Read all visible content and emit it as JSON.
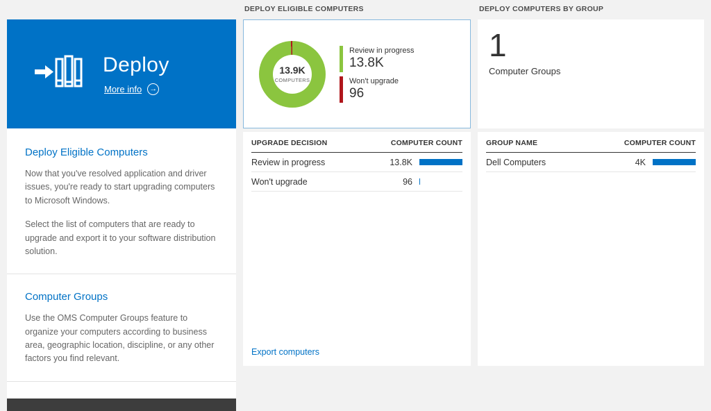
{
  "colors": {
    "accent_blue": "#0072c6",
    "tile_blue": "#0072c6",
    "donut_green": "#8bc53f",
    "donut_red": "#b0161c",
    "footer_bar": "#3d3d3d"
  },
  "left_panel": {
    "tile": {
      "title": "Deploy",
      "more_info_label": "More info"
    },
    "sections": [
      {
        "heading": "Deploy Eligible Computers",
        "paragraphs": [
          "Now that you've resolved application and driver issues, you're ready to start upgrading computers to Microsoft Windows.",
          "Select the list of computers that are ready to upgrade and export it to your software distribution solution."
        ]
      },
      {
        "heading": "Computer Groups",
        "paragraphs": [
          "Use the OMS Computer Groups feature to organize your computers according to business area, geographic location, discipline, or any other factors you find relevant."
        ]
      }
    ]
  },
  "middle_panel": {
    "header": "DEPLOY ELIGIBLE COMPUTERS",
    "table_columns": [
      "UPGRADE DECISION",
      "COMPUTER COUNT"
    ],
    "export_link": "Export computers"
  },
  "right_panel": {
    "header": "DEPLOY COMPUTERS BY GROUP",
    "summary_value": "1",
    "summary_label": "Computer Groups",
    "table_columns": [
      "GROUP NAME",
      "COMPUTER COUNT"
    ]
  },
  "chart_data": [
    {
      "type": "pie",
      "subtype": "donut",
      "title": "DEPLOY ELIGIBLE COMPUTERS",
      "center_value": "13.9K",
      "center_label": "COMPUTERS",
      "slices": [
        {
          "label": "Review in progress",
          "value": 13800,
          "display": "13.8K",
          "pct": 99.3,
          "color": "#8bc53f"
        },
        {
          "label": "Won't upgrade",
          "value": 96,
          "display": "96",
          "pct": 0.7,
          "color": "#b0161c"
        }
      ]
    },
    {
      "type": "bar",
      "title": "UPGRADE DECISION / COMPUTER COUNT",
      "categories": [
        "Review in progress",
        "Won't upgrade"
      ],
      "values": [
        13800,
        96
      ],
      "display_values": [
        "13.8K",
        "96"
      ],
      "bar_pct": [
        100,
        2
      ],
      "bar_color": "#0072c6"
    },
    {
      "type": "bar",
      "title": "GROUP NAME / COMPUTER COUNT",
      "categories": [
        "Dell Computers"
      ],
      "values": [
        4000
      ],
      "display_values": [
        "4K"
      ],
      "bar_pct": [
        100
      ],
      "bar_color": "#0072c6"
    }
  ]
}
